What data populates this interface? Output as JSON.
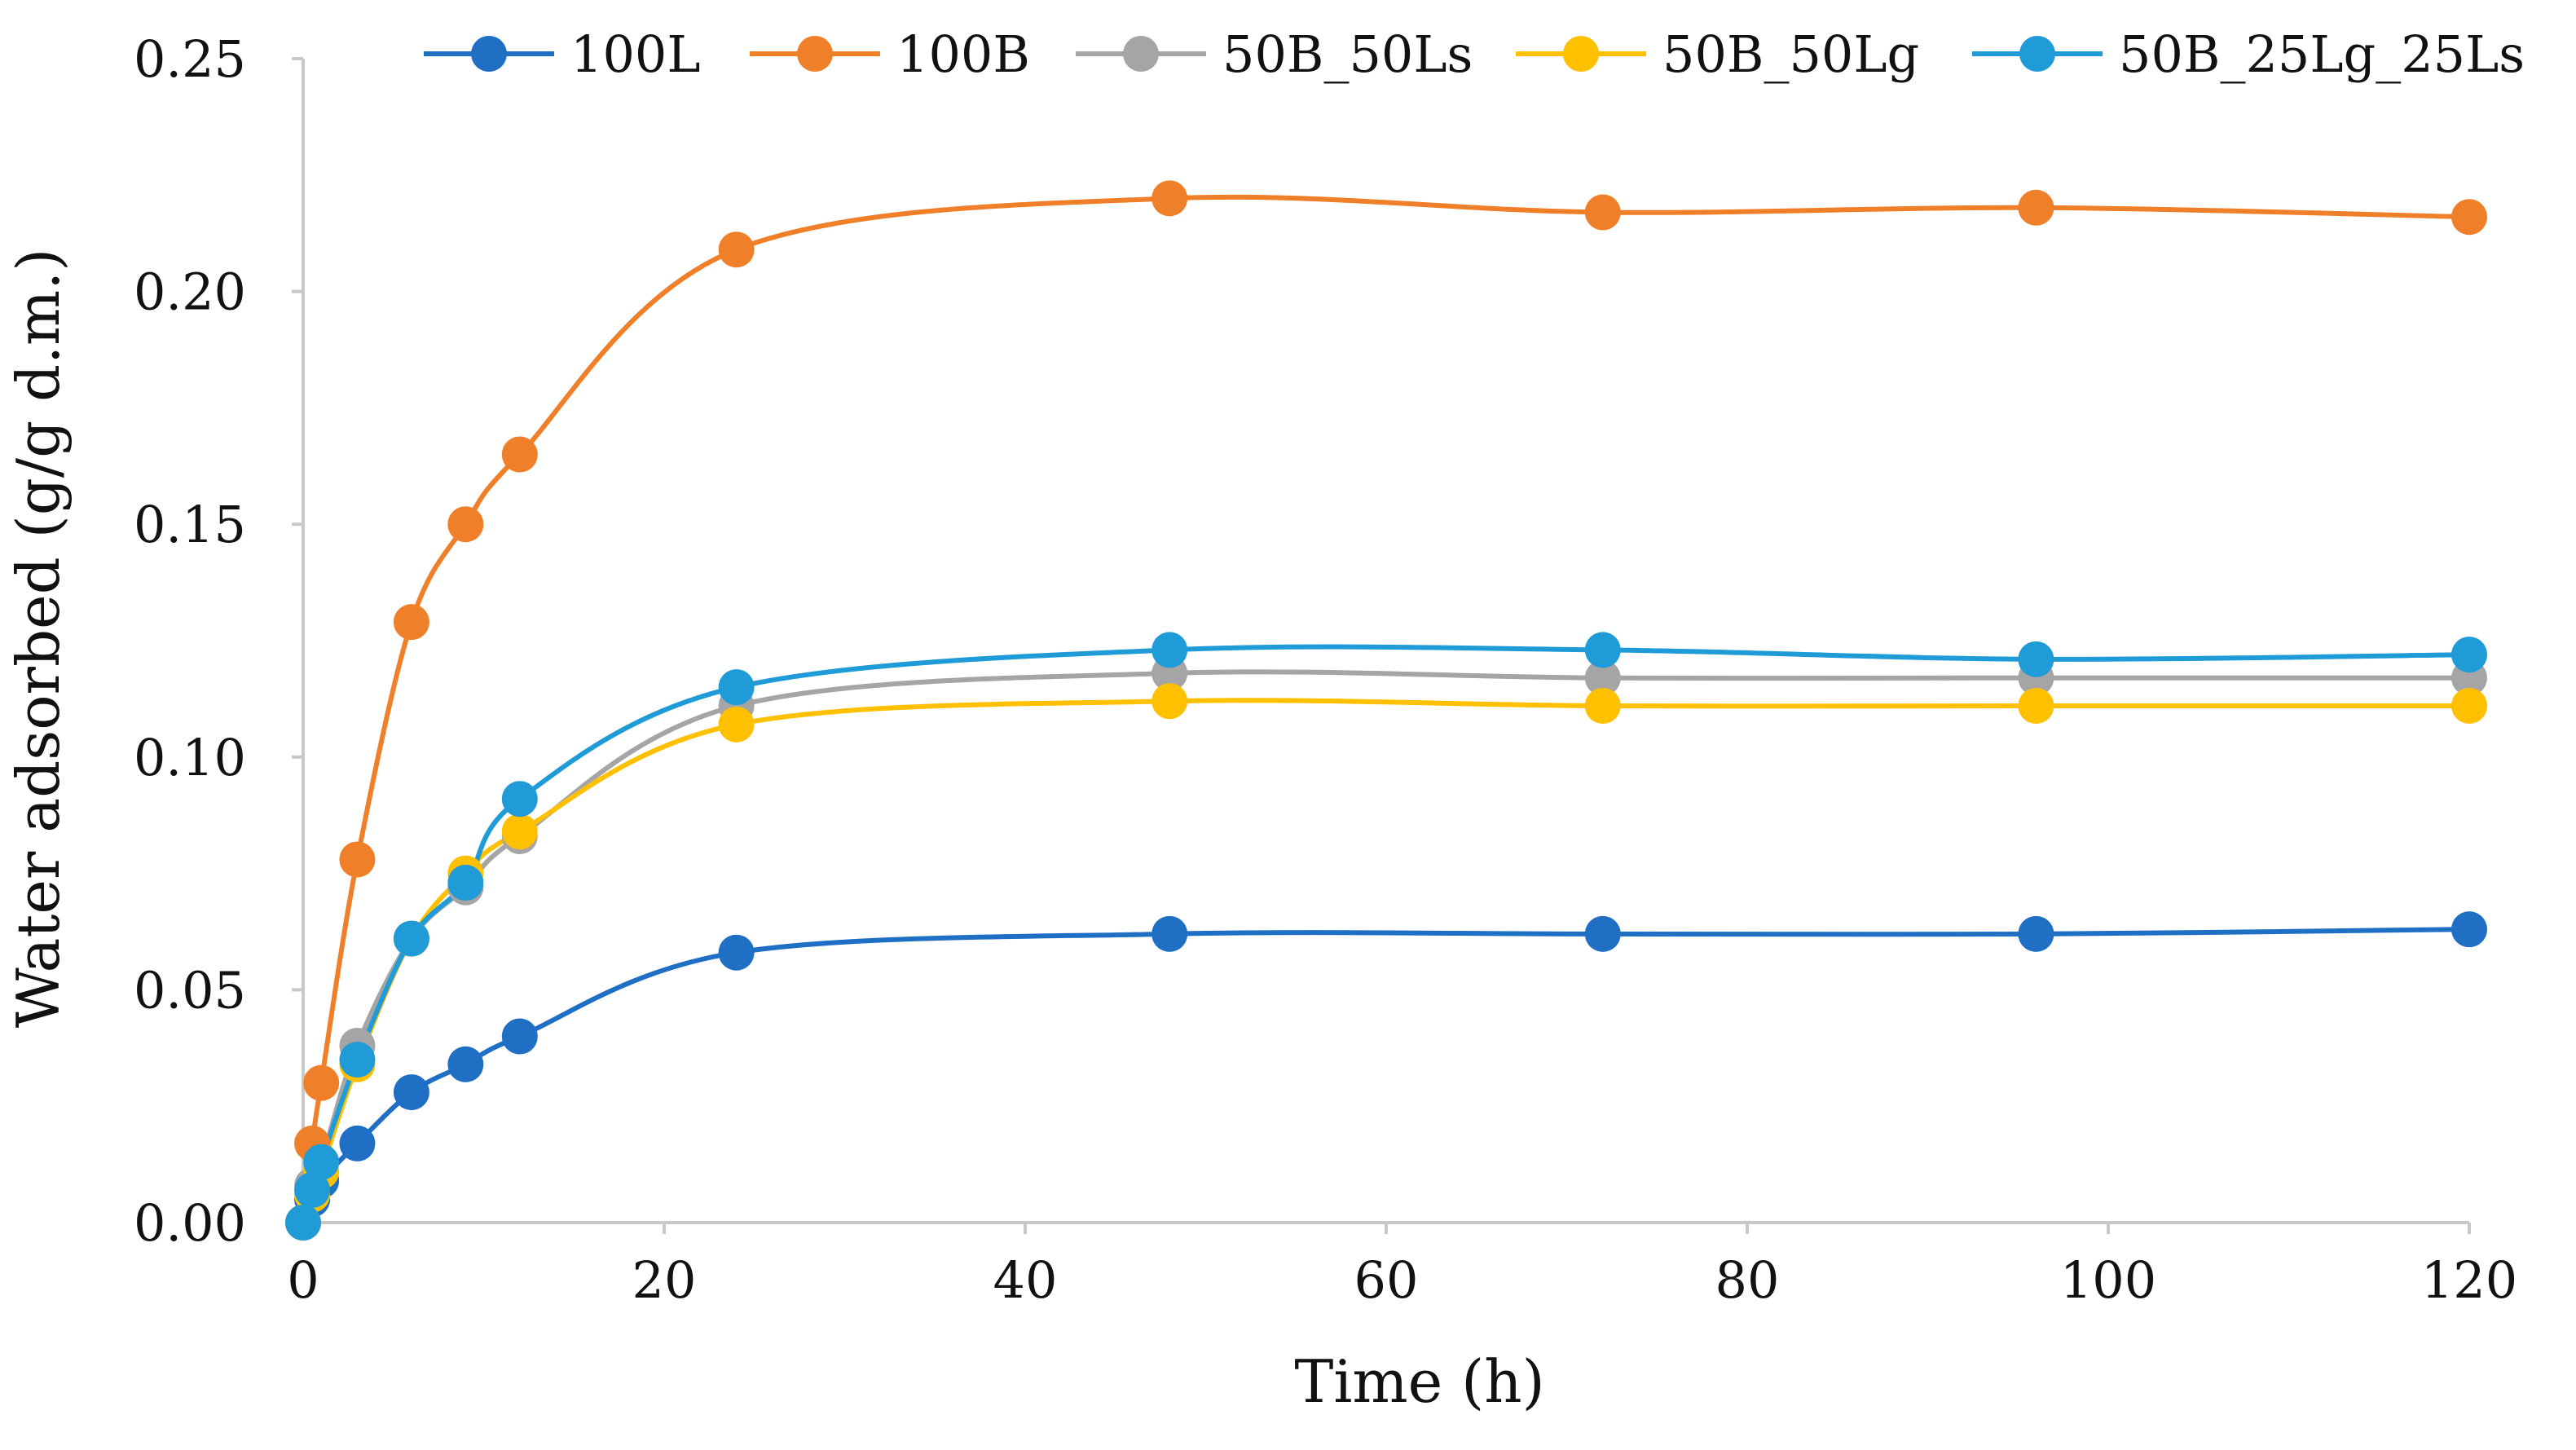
{
  "chart_data": {
    "type": "line",
    "title": "",
    "xlabel": "Time (h)",
    "ylabel": "Water adsorbed (g/g d.m.)",
    "xlim": [
      0,
      120
    ],
    "ylim": [
      0,
      0.25
    ],
    "x_ticks": [
      0,
      20,
      40,
      60,
      80,
      100,
      120
    ],
    "x_tick_labels": [
      "0",
      "20",
      "40",
      "60",
      "80",
      "100",
      "120"
    ],
    "y_ticks": [
      0,
      0.05,
      0.1,
      0.15,
      0.2,
      0.25
    ],
    "y_tick_labels": [
      "0.00",
      "0.05",
      "0.10",
      "0.15",
      "0.20",
      "0.25"
    ],
    "grid": false,
    "legend_position": "top",
    "series": [
      {
        "name": "100L",
        "color": "#1f6fc5",
        "points": [
          [
            0,
            0
          ],
          [
            0.5,
            0.005
          ],
          [
            1,
            0.009
          ],
          [
            3,
            0.017
          ],
          [
            6,
            0.028
          ],
          [
            9,
            0.034
          ],
          [
            12,
            0.04
          ],
          [
            24,
            0.058
          ],
          [
            48,
            0.062
          ],
          [
            72,
            0.062
          ],
          [
            96,
            0.062
          ],
          [
            120,
            0.063
          ]
        ]
      },
      {
        "name": "100B",
        "color": "#f07f2a",
        "points": [
          [
            0,
            0
          ],
          [
            0.5,
            0.017
          ],
          [
            1,
            0.03
          ],
          [
            3,
            0.078
          ],
          [
            6,
            0.129
          ],
          [
            9,
            0.15
          ],
          [
            12,
            0.165
          ],
          [
            24,
            0.209
          ],
          [
            48,
            0.22
          ],
          [
            72,
            0.217
          ],
          [
            96,
            0.218
          ],
          [
            120,
            0.216
          ]
        ]
      },
      {
        "name": "50B_50Ls",
        "color": "#a5a5a5",
        "points": [
          [
            0,
            0
          ],
          [
            0.5,
            0.008
          ],
          [
            1,
            0.013
          ],
          [
            3,
            0.038
          ],
          [
            6,
            0.061
          ],
          [
            9,
            0.072
          ],
          [
            12,
            0.083
          ],
          [
            24,
            0.111
          ],
          [
            48,
            0.118
          ],
          [
            72,
            0.117
          ],
          [
            96,
            0.117
          ],
          [
            120,
            0.117
          ]
        ]
      },
      {
        "name": "50B_50Lg",
        "color": "#ffc000",
        "points": [
          [
            0,
            0
          ],
          [
            0.5,
            0.006
          ],
          [
            1,
            0.011
          ],
          [
            3,
            0.034
          ],
          [
            6,
            0.061
          ],
          [
            9,
            0.075
          ],
          [
            12,
            0.084
          ],
          [
            24,
            0.107
          ],
          [
            48,
            0.112
          ],
          [
            72,
            0.111
          ],
          [
            96,
            0.111
          ],
          [
            120,
            0.111
          ]
        ]
      },
      {
        "name": "50B_25Lg_25Ls",
        "color": "#1f9bd8",
        "points": [
          [
            0,
            0
          ],
          [
            0.5,
            0.007
          ],
          [
            1,
            0.013
          ],
          [
            3,
            0.035
          ],
          [
            6,
            0.061
          ],
          [
            9,
            0.073
          ],
          [
            12,
            0.091
          ],
          [
            24,
            0.115
          ],
          [
            48,
            0.123
          ],
          [
            72,
            0.123
          ],
          [
            96,
            0.121
          ],
          [
            120,
            0.122
          ]
        ]
      }
    ]
  }
}
